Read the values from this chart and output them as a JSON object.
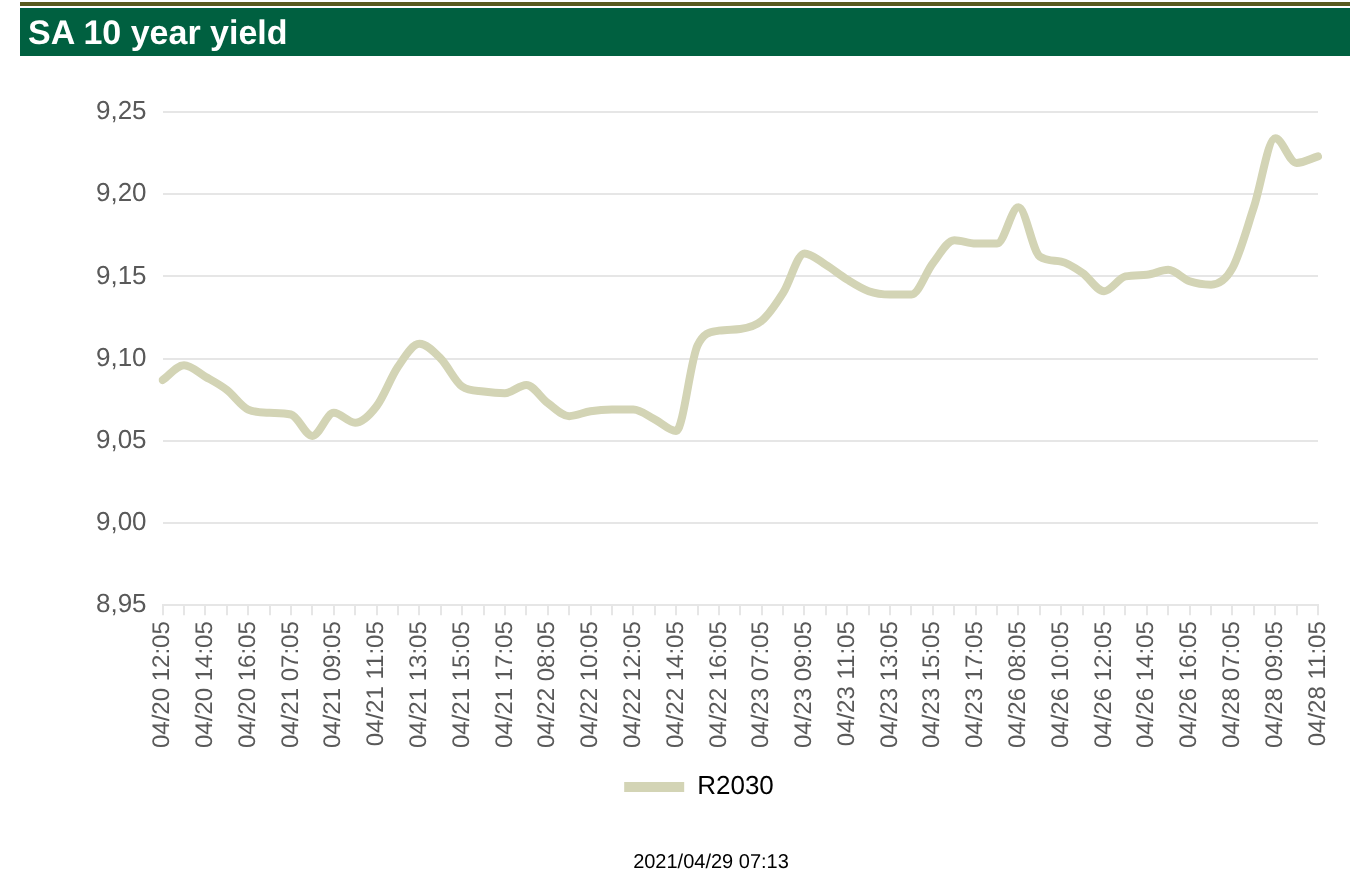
{
  "chart_data": {
    "type": "line",
    "title": "SA 10 year yield",
    "categories": [
      "04/20 12:05",
      null,
      "04/20 14:05",
      null,
      "04/20 16:05",
      null,
      "04/21 07:05",
      null,
      "04/21 09:05",
      null,
      "04/21 11:05",
      null,
      "04/21 13:05",
      null,
      "04/21 15:05",
      null,
      "04/21 17:05",
      null,
      "04/22 08:05",
      null,
      "04/22 10:05",
      null,
      "04/22 12:05",
      null,
      "04/22 14:05",
      null,
      "04/22 16:05",
      null,
      "04/23 07:05",
      null,
      "04/23 09:05",
      null,
      "04/23 11:05",
      null,
      "04/23 13:05",
      null,
      "04/23 15:05",
      null,
      "04/23 17:05",
      null,
      "04/26 08:05",
      null,
      "04/26 10:05",
      null,
      "04/26 12:05",
      null,
      "04/26 14:05",
      null,
      "04/26 16:05",
      null,
      "04/28 07:05",
      null,
      "04/28 09:05",
      null,
      "04/28 11:05"
    ],
    "series": [
      {
        "name": "R2030",
        "color": "#d3d4b5",
        "values": [
          9.087,
          9.096,
          9.089,
          9.081,
          9.069,
          9.067,
          9.066,
          9.053,
          9.067,
          9.061,
          9.071,
          9.095,
          9.109,
          9.1,
          9.083,
          9.08,
          9.079,
          9.084,
          9.073,
          9.065,
          9.068,
          9.069,
          9.069,
          9.063,
          9.056,
          9.108,
          9.117,
          9.118,
          9.123,
          9.14,
          9.164,
          9.157,
          9.148,
          9.141,
          9.139,
          9.139,
          9.158,
          9.172,
          9.17,
          9.17,
          9.192,
          9.162,
          9.159,
          9.152,
          9.141,
          9.15,
          9.151,
          9.154,
          9.147,
          9.145,
          9.155,
          9.192,
          9.234,
          9.219,
          9.223
        ]
      }
    ],
    "ylim": [
      8.95,
      9.25
    ],
    "yticks": [
      {
        "value": 8.95,
        "label": "8,95"
      },
      {
        "value": 9.0,
        "label": "9,00"
      },
      {
        "value": 9.05,
        "label": "9,05"
      },
      {
        "value": 9.1,
        "label": "9,10"
      },
      {
        "value": 9.15,
        "label": "9,15"
      },
      {
        "value": 9.2,
        "label": "9,20"
      },
      {
        "value": 9.25,
        "label": "9,25"
      }
    ],
    "grid": "y",
    "legend": "bottom",
    "marker": "none",
    "line_style": "solid",
    "annotations": [
      "2021/04/29 07:13"
    ]
  }
}
